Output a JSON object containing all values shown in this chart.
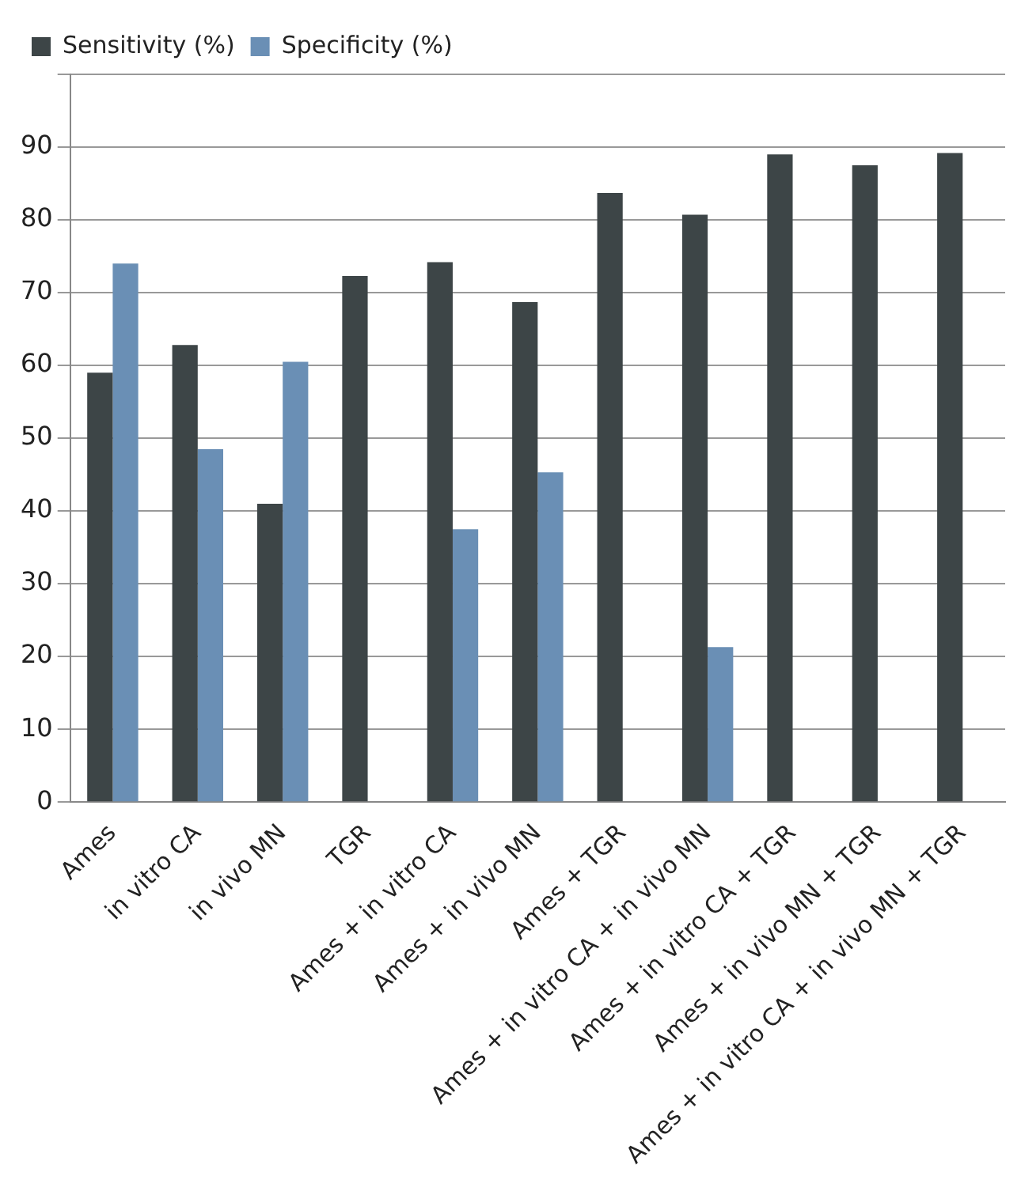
{
  "chart_data": {
    "type": "bar",
    "categories": [
      "Ames",
      "in vitro CA",
      "in vivo MN",
      "TGR",
      "Ames + in vitro CA",
      "Ames + in vivo MN",
      "Ames + TGR",
      "Ames + in vitro CA + in vivo MN",
      "Ames + in vitro CA + TGR",
      "Ames + in vivo MN + TGR",
      "Ames + in vitro CA + in vivo MN + TGR"
    ],
    "series": [
      {
        "name": "Sensitivity (%)",
        "color": "#3d4547",
        "values": [
          59,
          62.8,
          41,
          72.3,
          74.2,
          68.7,
          83.7,
          80.7,
          89,
          87.5,
          89.2
        ]
      },
      {
        "name": "Specificity (%)",
        "color": "#6a8fb5",
        "values": [
          74,
          48.5,
          60.5,
          null,
          37.5,
          45.3,
          null,
          21.3,
          null,
          null,
          null
        ]
      }
    ],
    "ylim": [
      0,
      100
    ],
    "yticks": [
      0,
      10,
      20,
      30,
      40,
      50,
      60,
      70,
      80,
      90,
      {
        "value": 100,
        "label": null
      }
    ],
    "grid": "y",
    "legend": "top left"
  }
}
